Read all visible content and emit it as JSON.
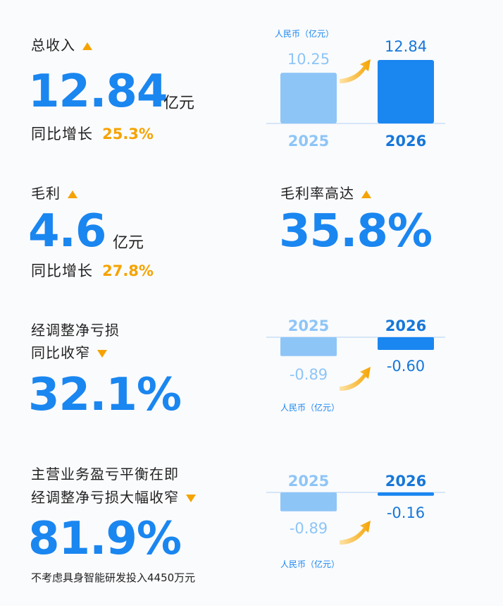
{
  "colors": {
    "accent": "#1a86f0",
    "accent_light": "#8ec5f7",
    "highlight": "#f5a300"
  },
  "revenue": {
    "label": "总收入",
    "value": "12.84",
    "unit": "亿元",
    "growth_label": "同比增长",
    "growth_value": "25.3%"
  },
  "gross_profit": {
    "label": "毛利",
    "value": "4.6",
    "unit": "亿元",
    "growth_label": "同比增长",
    "growth_value": "27.8%"
  },
  "gross_margin": {
    "label": "毛利率高达",
    "value": "35.8%"
  },
  "net_loss": {
    "label_line1": "经调整净亏损",
    "label_line2": "同比收窄",
    "value": "32.1%"
  },
  "breakeven": {
    "label_line1": "主营业务盈亏平衡在即",
    "label_line2": "经调整净亏损大幅收窄",
    "value": "81.9%",
    "note": "不考虑具身智能研发投入4450万元"
  },
  "chart_data": [
    {
      "type": "bar",
      "unit_label": "人民币（亿元）",
      "categories": [
        "2025",
        "2026"
      ],
      "values": [
        10.25,
        12.84
      ],
      "value_labels": [
        "10.25",
        "12.84"
      ]
    },
    {
      "type": "bar",
      "unit_label": "人民币（亿元）",
      "categories": [
        "2025",
        "2026"
      ],
      "values": [
        -0.89,
        -0.6
      ],
      "value_labels": [
        "-0.89",
        "-0.60"
      ]
    },
    {
      "type": "bar",
      "unit_label": "人民币（亿元）",
      "categories": [
        "2025",
        "2026"
      ],
      "values": [
        -0.89,
        -0.16
      ],
      "value_labels": [
        "-0.89",
        "-0.16"
      ]
    }
  ]
}
